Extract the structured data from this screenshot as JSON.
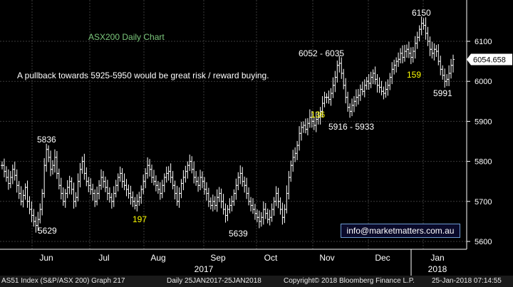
{
  "chart_data": {
    "type": "ohlc",
    "title": "ASX200 Daily Chart",
    "subtitle": "A pullback towards 5925-5950 would be great risk / reward buying.",
    "ylim": [
      5580,
      6180
    ],
    "y_ticks": [
      5600,
      5700,
      5800,
      5900,
      6000,
      6100
    ],
    "x_month_labels": [
      "Jun",
      "Jul",
      "Aug",
      "Sep",
      "Oct",
      "Nov",
      "Dec",
      "Jan"
    ],
    "x_year_labels": [
      "2017",
      "2018"
    ],
    "last_price_label": "6054.658",
    "colors": {
      "price": "#ffffff",
      "grid": "#3a3a3a",
      "axis_text": "#ffffff",
      "title": "#7cc87c",
      "highlight": "#ffff00"
    },
    "annotations": [
      {
        "text": "5836",
        "color": "#ffffff"
      },
      {
        "text": "5629",
        "color": "#ffffff"
      },
      {
        "text": "197",
        "color": "#ffff00"
      },
      {
        "text": "5639",
        "color": "#ffffff"
      },
      {
        "text": "6052 - 6035",
        "color": "#ffffff"
      },
      {
        "text": "136",
        "color": "#ffff00"
      },
      {
        "text": "5916 - 5933",
        "color": "#ffffff"
      },
      {
        "text": "6150",
        "color": "#ffffff"
      },
      {
        "text": "159",
        "color": "#ffff00"
      },
      {
        "text": "5991",
        "color": "#ffffff"
      }
    ],
    "series": [
      {
        "values": [
          5790,
          5775,
          5760,
          5745,
          5760,
          5780,
          5765,
          5740,
          5720,
          5700,
          5715,
          5735,
          5700,
          5680,
          5665,
          5650,
          5640,
          5655,
          5680,
          5720,
          5790,
          5830,
          5810,
          5780,
          5790,
          5810,
          5770,
          5740,
          5720,
          5700,
          5720,
          5735,
          5750,
          5730,
          5700,
          5710,
          5750,
          5780,
          5800,
          5770,
          5750,
          5740,
          5730,
          5720,
          5700,
          5720,
          5740,
          5760,
          5750,
          5735,
          5720,
          5710,
          5700,
          5720,
          5740,
          5760,
          5770,
          5750,
          5740,
          5730,
          5720,
          5710,
          5700,
          5690,
          5700,
          5710,
          5730,
          5750,
          5770,
          5790,
          5780,
          5760,
          5750,
          5740,
          5730,
          5720,
          5740,
          5760,
          5770,
          5775,
          5760,
          5740,
          5720,
          5700,
          5720,
          5745,
          5760,
          5775,
          5790,
          5800,
          5780,
          5760,
          5750,
          5740,
          5760,
          5750,
          5730,
          5720,
          5700,
          5690,
          5700,
          5690,
          5710,
          5720,
          5700,
          5680,
          5665,
          5680,
          5690,
          5700,
          5720,
          5740,
          5760,
          5770,
          5750,
          5740,
          5720,
          5700,
          5690,
          5680,
          5670,
          5660,
          5650,
          5660,
          5680,
          5670,
          5655,
          5660,
          5680,
          5700,
          5720,
          5700,
          5680,
          5660,
          5680,
          5720,
          5760,
          5790,
          5810,
          5820,
          5840,
          5870,
          5885,
          5890,
          5880,
          5895,
          5910,
          5900,
          5890,
          5905,
          5910,
          5925,
          5945,
          5960,
          5960,
          5955,
          5970,
          5990,
          6010,
          6040,
          6045,
          6020,
          5990,
          5960,
          5935,
          5925,
          5940,
          5950,
          5960,
          5965,
          5980,
          5975,
          5990,
          6000,
          5995,
          6010,
          6020,
          6005,
          5990,
          5985,
          5975,
          5970,
          5980,
          5990,
          6010,
          6030,
          6040,
          6050,
          6055,
          6070,
          6060,
          6075,
          6080,
          6070,
          6060,
          6075,
          6095,
          6110,
          6130,
          6145,
          6140,
          6120,
          6100,
          6080,
          6070,
          6080,
          6075,
          6050,
          6030,
          6015,
          6000,
          6005,
          6020,
          6040,
          6054.658
        ]
      }
    ]
  },
  "footer": {
    "index": "AS51 Index (S&P/ASX 200) Graph 217",
    "range": "Daily 25JAN2017-25JAN2018",
    "copyright": "Copyright© 2018 Bloomberg Finance L.P.",
    "timestamp": "25-Jan-2018 07:14:55"
  },
  "badge": "info@marketmatters.com.au"
}
